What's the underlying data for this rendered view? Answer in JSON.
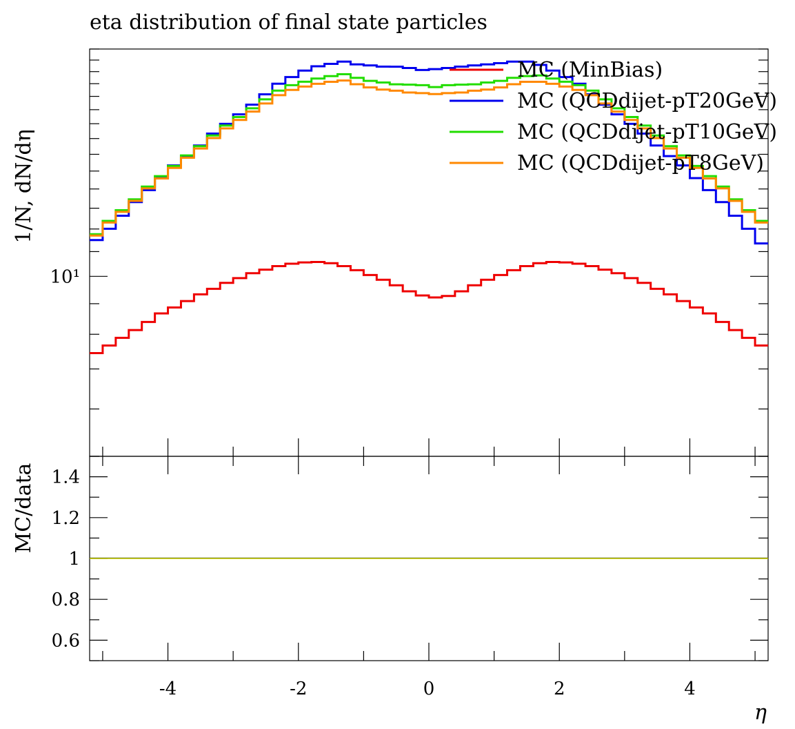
{
  "chart_data": {
    "type": "line",
    "title": "eta distribution of final state particles",
    "xlabel": "η",
    "ylabel": "1/N, dN/dη",
    "ratio_ylabel": "MC/data",
    "x_range": [
      -5.2,
      5.2
    ],
    "main_y_scale": "log",
    "main_y_range": [
      5.0,
      24.0
    ],
    "main_y_tick_labels": [
      {
        "value": 10,
        "label": "10¹"
      }
    ],
    "ratio_y_range": [
      0.5,
      1.5
    ],
    "ratio_y_tick_labels": [
      "1.4",
      "1.2",
      "1",
      "0.8",
      "0.6"
    ],
    "ratio_y_ticks": [
      1.4,
      1.2,
      1.0,
      0.8,
      0.6
    ],
    "x_tick_labels": [
      "-4",
      "-2",
      "0",
      "2",
      "4"
    ],
    "x_ticks": [
      -4,
      -2,
      0,
      2,
      4
    ],
    "legend_position": "top-right",
    "bin_edges": [
      -5.2,
      -5.0,
      -4.8,
      -4.6,
      -4.4,
      -4.2,
      -4.0,
      -3.8,
      -3.6,
      -3.4,
      -3.2,
      -3.0,
      -2.8,
      -2.6,
      -2.4,
      -2.2,
      -2.0,
      -1.8,
      -1.6,
      -1.4,
      -1.2,
      -1.0,
      -0.8,
      -0.6,
      -0.4,
      -0.2,
      0.0,
      0.2,
      0.4,
      0.6,
      0.8,
      1.0,
      1.2,
      1.4,
      1.6,
      1.8,
      2.0,
      2.2,
      2.4,
      2.6,
      2.8,
      3.0,
      3.2,
      3.4,
      3.6,
      3.8,
      4.0,
      4.2,
      4.4,
      4.6,
      4.8,
      5.0,
      5.2
    ],
    "series": [
      {
        "name": "MC (MinBias)",
        "color": "#ee0000",
        "values": [
          7.44,
          7.66,
          7.89,
          8.13,
          8.39,
          8.67,
          8.87,
          9.09,
          9.33,
          9.53,
          9.75,
          9.93,
          10.12,
          10.26,
          10.4,
          10.5,
          10.55,
          10.57,
          10.52,
          10.4,
          10.24,
          10.05,
          9.87,
          9.66,
          9.44,
          9.29,
          9.22,
          9.27,
          9.44,
          9.66,
          9.87,
          10.05,
          10.24,
          10.4,
          10.52,
          10.57,
          10.55,
          10.5,
          10.4,
          10.26,
          10.12,
          9.93,
          9.75,
          9.53,
          9.33,
          9.09,
          8.87,
          8.67,
          8.39,
          8.13,
          7.89,
          7.66,
          7.44
        ]
      },
      {
        "name": "MC (QCDdijet-pT20GeV)",
        "color": "#0000ee",
        "values": [
          11.5,
          12.01,
          12.63,
          13.31,
          13.94,
          14.6,
          15.33,
          15.89,
          16.55,
          17.33,
          17.99,
          18.66,
          19.37,
          20.16,
          21.0,
          21.54,
          22.09,
          22.46,
          22.67,
          22.86,
          22.62,
          22.53,
          22.43,
          22.42,
          22.31,
          22.14,
          22.21,
          22.31,
          22.43,
          22.53,
          22.62,
          22.73,
          22.86,
          22.86,
          22.58,
          22.09,
          21.54,
          21.0,
          20.16,
          19.37,
          18.66,
          17.99,
          17.33,
          16.55,
          15.89,
          15.33,
          14.6,
          13.94,
          13.31,
          12.63,
          12.01,
          11.35,
          11.35
        ]
      },
      {
        "name": "MC (QCDdijet-pT10GeV)",
        "color": "#22dd00",
        "values": [
          11.76,
          12.38,
          12.9,
          13.45,
          14.13,
          14.71,
          15.3,
          15.93,
          16.51,
          17.2,
          17.87,
          18.47,
          19.1,
          19.77,
          20.45,
          20.88,
          21.16,
          21.42,
          21.62,
          21.78,
          21.48,
          21.23,
          21.1,
          20.95,
          20.92,
          20.88,
          20.73,
          20.88,
          20.92,
          20.95,
          21.1,
          21.23,
          21.48,
          21.62,
          21.68,
          21.42,
          21.16,
          20.88,
          20.45,
          19.77,
          19.1,
          18.47,
          17.87,
          17.2,
          16.51,
          15.93,
          15.3,
          14.71,
          14.13,
          13.45,
          12.9,
          12.38,
          11.76
        ]
      },
      {
        "name": "MC (QCDdijet-pT8GeV)",
        "color": "#ff8800",
        "values": [
          11.7,
          12.3,
          12.82,
          13.37,
          14.03,
          14.58,
          15.18,
          15.79,
          16.36,
          17.03,
          17.68,
          18.26,
          18.86,
          19.46,
          20.09,
          20.5,
          20.77,
          20.99,
          21.15,
          21.26,
          20.96,
          20.7,
          20.53,
          20.44,
          20.3,
          20.25,
          20.18,
          20.25,
          20.3,
          20.44,
          20.53,
          20.7,
          20.96,
          21.15,
          21.15,
          20.99,
          20.77,
          20.5,
          20.09,
          19.46,
          18.86,
          18.26,
          17.68,
          17.03,
          16.36,
          15.79,
          15.18,
          14.58,
          14.03,
          13.37,
          12.82,
          12.3,
          11.7
        ]
      }
    ],
    "ratio_line": {
      "value": 1.0,
      "color": "#dddd00"
    }
  }
}
